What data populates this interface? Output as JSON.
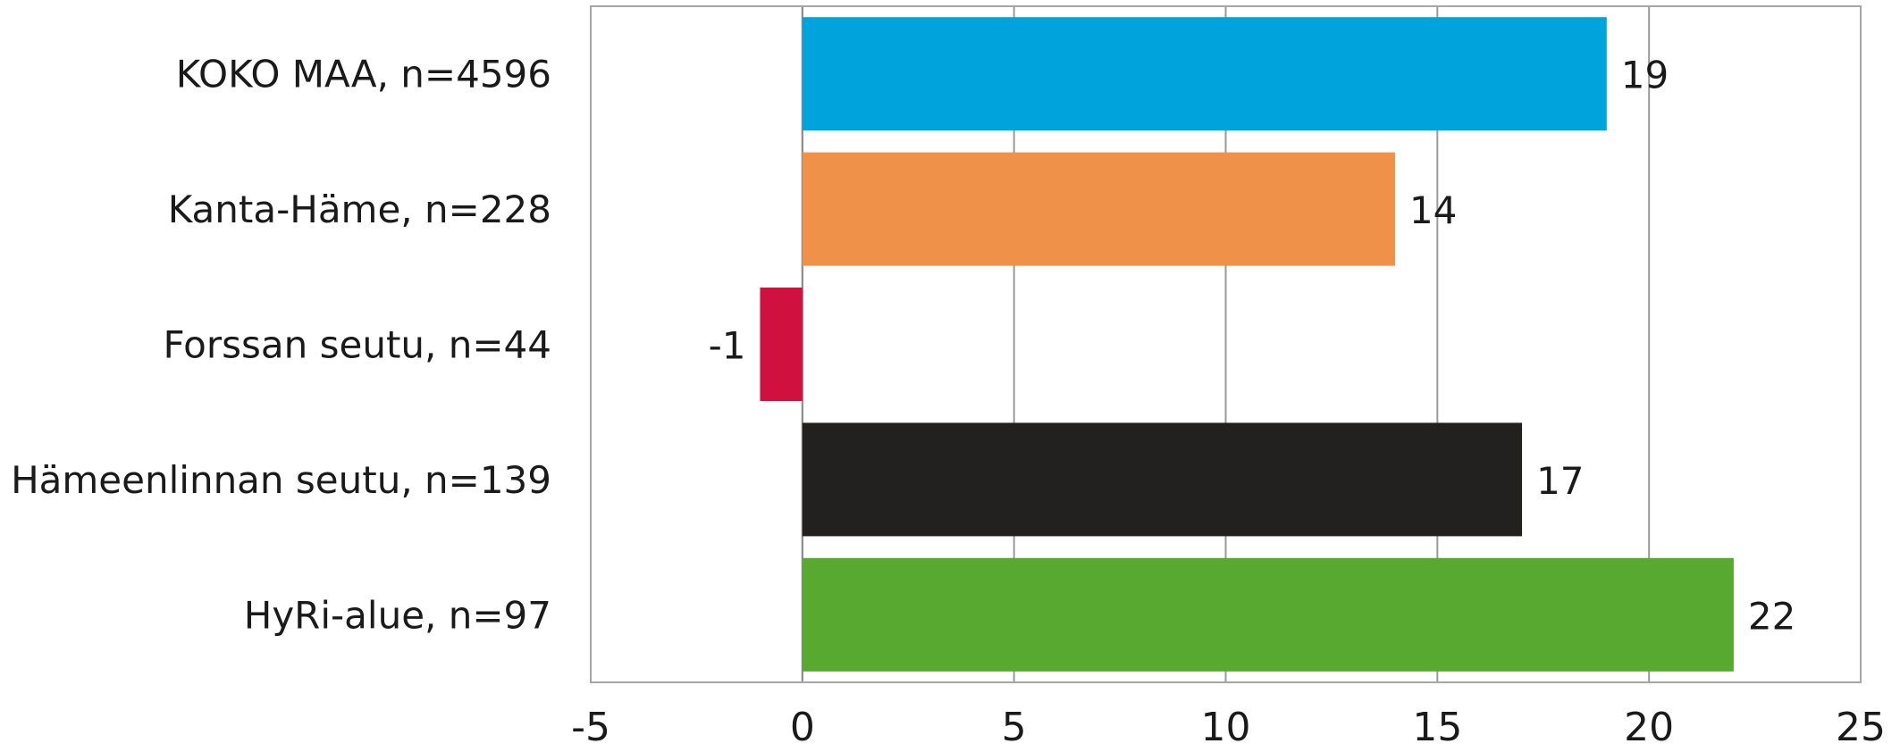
{
  "chart_data": {
    "type": "bar",
    "orientation": "horizontal",
    "categories": [
      "KOKO MAA, n=4596",
      "Kanta-Häme, n=228",
      "Forssan seutu, n=44",
      "Hämeenlinnan seutu, n=139",
      "HyRi-alue, n=97"
    ],
    "values": [
      19,
      14,
      -1,
      17,
      22
    ],
    "data_labels": [
      "19",
      "14",
      "-1",
      "17",
      "22"
    ],
    "colors": [
      "#00a3dc",
      "#f0914a",
      "#d0103f",
      "#222120",
      "#57a92f"
    ],
    "xlim": [
      -5,
      25
    ],
    "xticks": [
      -5,
      0,
      5,
      10,
      15,
      20,
      25
    ],
    "xtick_labels": [
      "-5",
      "0",
      "5",
      "10",
      "15",
      "20",
      "25"
    ],
    "grid": true,
    "legend": "none",
    "title": "",
    "xlabel": "",
    "ylabel": ""
  }
}
